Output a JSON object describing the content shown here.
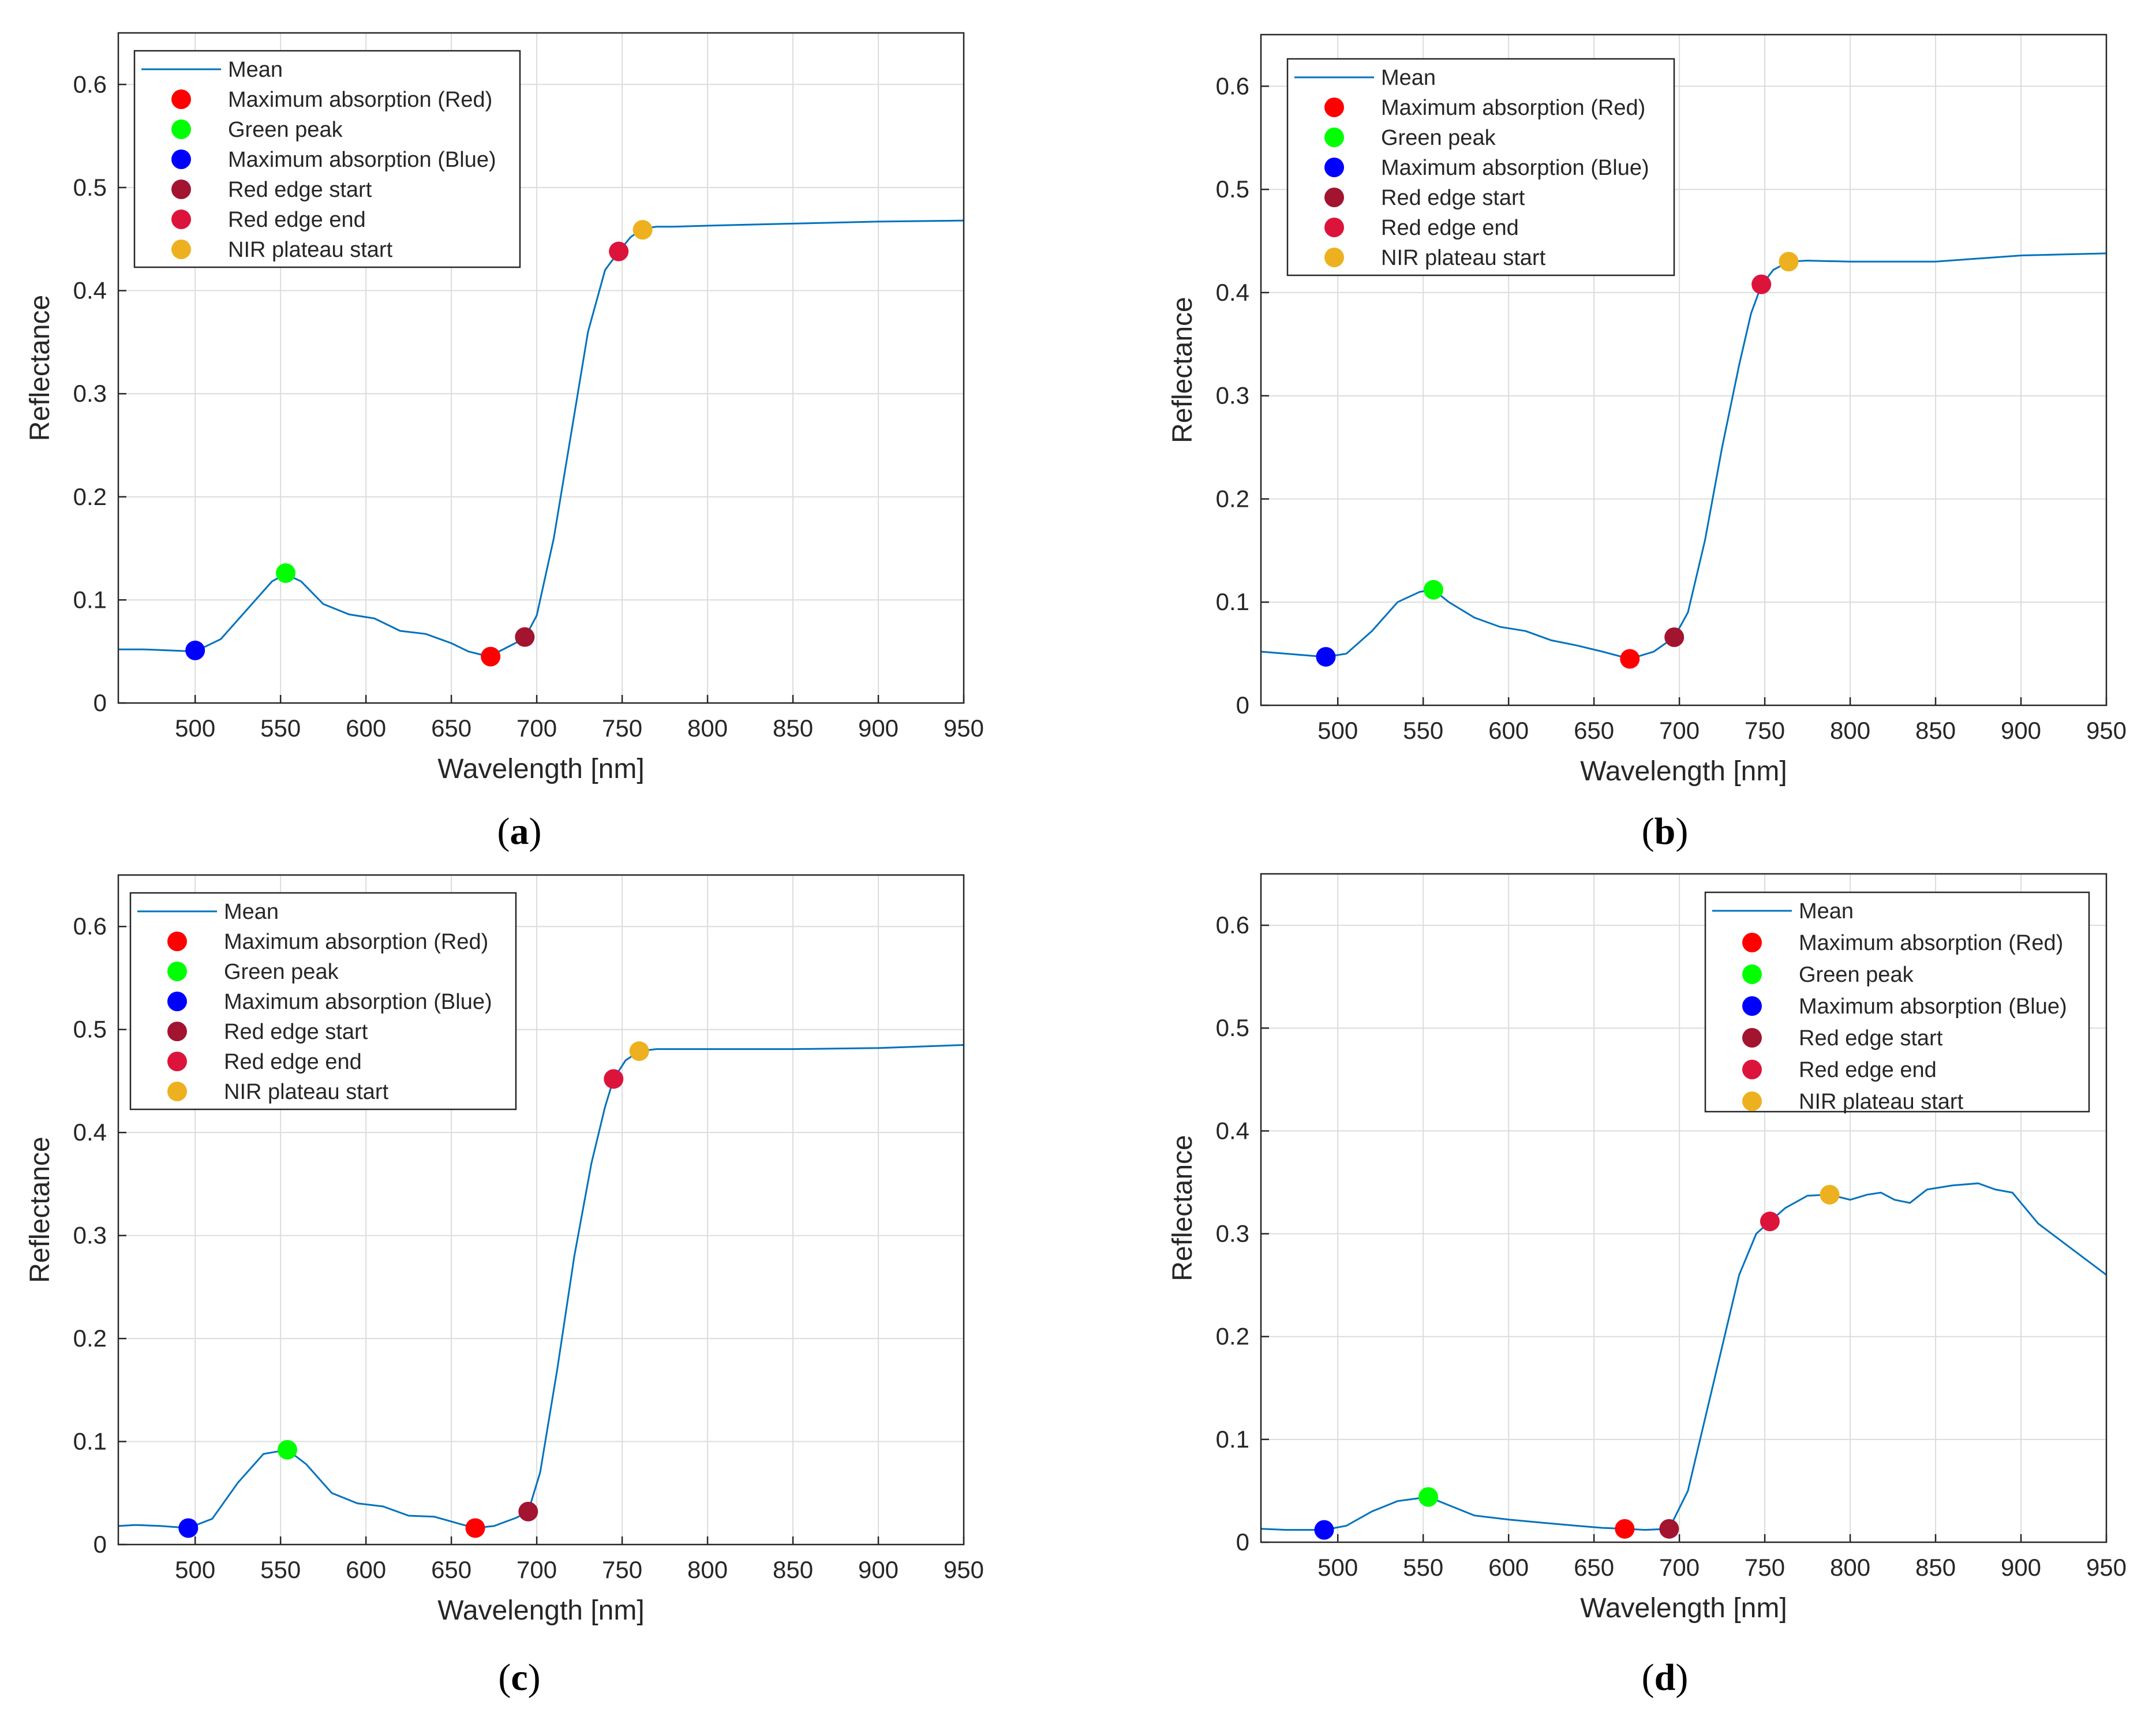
{
  "legend_labels": {
    "mean": "Mean",
    "max_red": "Maximum absorption (Red)",
    "green_peak": "Green peak",
    "max_blue": "Maximum absorption (Blue)",
    "red_edge_start": "Red edge start",
    "red_edge_end": "Red edge end",
    "nir_start": "NIR plateau start"
  },
  "colors": {
    "line": "#0072BD",
    "max_red": "#FF0000",
    "green_peak": "#00FF00",
    "max_blue": "#0000FF",
    "red_edge_start": "#A2142F",
    "red_edge_end": "#DC143C",
    "nir_start": "#EDB120",
    "grid": "#dcdcdc",
    "axis": "#262626"
  },
  "chart_data": [
    {
      "type": "line",
      "panel": "(a)",
      "xlabel": "Wavelength [nm]",
      "ylabel": "Reflectance",
      "xlim": [
        455,
        950
      ],
      "ylim": [
        0,
        0.65
      ],
      "xticks": [
        500,
        550,
        600,
        650,
        700,
        750,
        800,
        850,
        900,
        950
      ],
      "yticks": [
        0,
        0.1,
        0.2,
        0.3,
        0.4,
        0.5,
        0.6
      ],
      "grid": true,
      "legend_position": "top-left",
      "series": [
        {
          "name": "Mean",
          "x": [
            455,
            470,
            485,
            500,
            515,
            530,
            545,
            553,
            562,
            575,
            590,
            605,
            620,
            635,
            650,
            660,
            672,
            685,
            693,
            700,
            710,
            720,
            730,
            740,
            748,
            755,
            762,
            770,
            780,
            800,
            850,
            900,
            950
          ],
          "y": [
            0.052,
            0.052,
            0.051,
            0.05,
            0.062,
            0.09,
            0.118,
            0.125,
            0.118,
            0.096,
            0.086,
            0.082,
            0.07,
            0.067,
            0.058,
            0.05,
            0.045,
            0.056,
            0.063,
            0.085,
            0.16,
            0.26,
            0.36,
            0.42,
            0.438,
            0.452,
            0.46,
            0.462,
            0.462,
            0.463,
            0.465,
            0.467,
            0.468
          ]
        }
      ],
      "markers": [
        {
          "name": "Maximum absorption (Red)",
          "x": 673,
          "y": 0.045
        },
        {
          "name": "Green peak",
          "x": 553,
          "y": 0.126
        },
        {
          "name": "Maximum absorption (Blue)",
          "x": 500,
          "y": 0.051
        },
        {
          "name": "Red edge start",
          "x": 693,
          "y": 0.064
        },
        {
          "name": "Red edge end",
          "x": 748,
          "y": 0.438
        },
        {
          "name": "NIR plateau start",
          "x": 762,
          "y": 0.459
        }
      ]
    },
    {
      "type": "line",
      "panel": "(b)",
      "xlabel": "Wavelength [nm]",
      "ylabel": "Reflectance",
      "xlim": [
        455,
        950
      ],
      "ylim": [
        0,
        0.65
      ],
      "xticks": [
        500,
        550,
        600,
        650,
        700,
        750,
        800,
        850,
        900,
        950
      ],
      "yticks": [
        0,
        0.1,
        0.2,
        0.3,
        0.4,
        0.5,
        0.6
      ],
      "grid": true,
      "legend_position": "top-left",
      "series": [
        {
          "name": "Mean",
          "x": [
            455,
            470,
            485,
            493,
            505,
            520,
            535,
            548,
            556,
            565,
            580,
            595,
            610,
            625,
            640,
            655,
            671,
            685,
            697,
            705,
            715,
            725,
            735,
            742,
            748,
            755,
            764,
            775,
            800,
            850,
            900,
            950
          ],
          "y": [
            0.052,
            0.05,
            0.048,
            0.047,
            0.05,
            0.072,
            0.1,
            0.11,
            0.112,
            0.1,
            0.085,
            0.076,
            0.072,
            0.063,
            0.058,
            0.052,
            0.045,
            0.052,
            0.066,
            0.09,
            0.16,
            0.25,
            0.33,
            0.38,
            0.407,
            0.422,
            0.43,
            0.431,
            0.43,
            0.43,
            0.436,
            0.438
          ]
        }
      ],
      "markers": [
        {
          "name": "Maximum absorption (Red)",
          "x": 671,
          "y": 0.045
        },
        {
          "name": "Green peak",
          "x": 556,
          "y": 0.112
        },
        {
          "name": "Maximum absorption (Blue)",
          "x": 493,
          "y": 0.047
        },
        {
          "name": "Red edge start",
          "x": 697,
          "y": 0.066
        },
        {
          "name": "Red edge end",
          "x": 748,
          "y": 0.408
        },
        {
          "name": "NIR plateau start",
          "x": 764,
          "y": 0.43
        }
      ]
    },
    {
      "type": "line",
      "panel": "(c)",
      "xlabel": "Wavelength [nm]",
      "ylabel": "Reflectance",
      "xlim": [
        455,
        950
      ],
      "ylim": [
        0,
        0.65
      ],
      "xticks": [
        500,
        550,
        600,
        650,
        700,
        750,
        800,
        850,
        900,
        950
      ],
      "yticks": [
        0,
        0.1,
        0.2,
        0.3,
        0.4,
        0.5,
        0.6
      ],
      "grid": true,
      "legend_position": "top-left",
      "series": [
        {
          "name": "Mean",
          "x": [
            455,
            465,
            480,
            496,
            510,
            525,
            540,
            554,
            565,
            580,
            595,
            610,
            625,
            640,
            655,
            664,
            675,
            688,
            695,
            702,
            712,
            722,
            732,
            740,
            745,
            752,
            760,
            770,
            800,
            850,
            900,
            950
          ],
          "y": [
            0.018,
            0.019,
            0.018,
            0.016,
            0.025,
            0.06,
            0.088,
            0.092,
            0.078,
            0.05,
            0.04,
            0.037,
            0.028,
            0.027,
            0.02,
            0.016,
            0.018,
            0.026,
            0.032,
            0.07,
            0.17,
            0.28,
            0.37,
            0.425,
            0.452,
            0.47,
            0.479,
            0.481,
            0.481,
            0.481,
            0.482,
            0.485
          ]
        }
      ],
      "markers": [
        {
          "name": "Maximum absorption (Red)",
          "x": 664,
          "y": 0.016
        },
        {
          "name": "Green peak",
          "x": 554,
          "y": 0.092
        },
        {
          "name": "Maximum absorption (Blue)",
          "x": 496,
          "y": 0.016
        },
        {
          "name": "Red edge start",
          "x": 695,
          "y": 0.032
        },
        {
          "name": "Red edge end",
          "x": 745,
          "y": 0.452
        },
        {
          "name": "NIR plateau start",
          "x": 760,
          "y": 0.479
        }
      ]
    },
    {
      "type": "line",
      "panel": "(d)",
      "xlabel": "Wavelength [nm]",
      "ylabel": "Reflectance",
      "xlim": [
        455,
        950
      ],
      "ylim": [
        0,
        0.65
      ],
      "xticks": [
        500,
        550,
        600,
        650,
        700,
        750,
        800,
        850,
        900,
        950
      ],
      "yticks": [
        0,
        0.1,
        0.2,
        0.3,
        0.4,
        0.5,
        0.6
      ],
      "grid": true,
      "legend_position": "top-right",
      "series": [
        {
          "name": "Mean",
          "x": [
            455,
            470,
            485,
            492,
            505,
            520,
            535,
            553,
            565,
            580,
            600,
            620,
            640,
            655,
            668,
            680,
            694,
            705,
            715,
            725,
            735,
            745,
            753,
            762,
            775,
            788,
            800,
            810,
            818,
            826,
            835,
            845,
            860,
            875,
            885,
            895,
            910,
            930,
            950
          ],
          "y": [
            0.013,
            0.012,
            0.012,
            0.012,
            0.016,
            0.03,
            0.04,
            0.044,
            0.036,
            0.026,
            0.022,
            0.019,
            0.016,
            0.014,
            0.013,
            0.012,
            0.013,
            0.05,
            0.12,
            0.19,
            0.26,
            0.3,
            0.312,
            0.325,
            0.337,
            0.338,
            0.333,
            0.338,
            0.34,
            0.333,
            0.33,
            0.343,
            0.347,
            0.349,
            0.343,
            0.34,
            0.31,
            0.285,
            0.26
          ]
        }
      ],
      "markers": [
        {
          "name": "Maximum absorption (Red)",
          "x": 668,
          "y": 0.013
        },
        {
          "name": "Green peak",
          "x": 553,
          "y": 0.044
        },
        {
          "name": "Maximum absorption (Blue)",
          "x": 492,
          "y": 0.012
        },
        {
          "name": "Red edge start",
          "x": 694,
          "y": 0.013
        },
        {
          "name": "Red edge end",
          "x": 753,
          "y": 0.312
        },
        {
          "name": "NIR plateau start",
          "x": 788,
          "y": 0.338
        }
      ]
    }
  ]
}
